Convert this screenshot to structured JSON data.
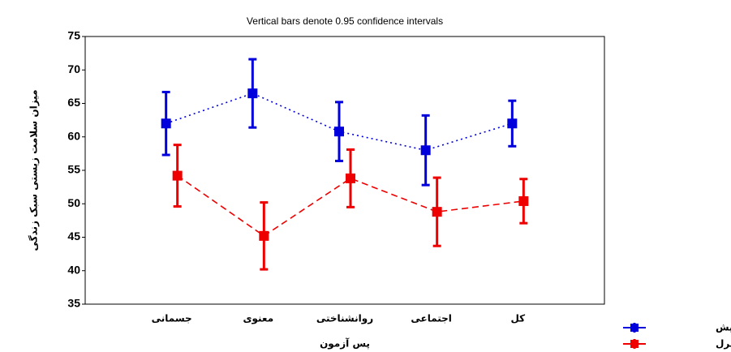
{
  "chart_data": {
    "type": "errorbar",
    "title": "Vertical bars denote 0.95 confidence intervals",
    "xlabel": "پس آزمون",
    "ylabel": "میزان سلامت زیستی سبک زندگی",
    "categories": [
      "جسمانی",
      "معنوی",
      "روانشناختی",
      "اجتماعی",
      "کل"
    ],
    "series": [
      {
        "name": "گروه آزمایش",
        "color": "#0000dd",
        "linestyle": "dotted",
        "values": [
          62.0,
          66.5,
          60.8,
          58.0,
          62.0
        ],
        "errors": [
          4.7,
          5.1,
          4.4,
          5.2,
          3.4
        ]
      },
      {
        "name": "گروه کنترل",
        "color": "#ee0000",
        "linestyle": "dashed",
        "values": [
          54.2,
          45.2,
          53.8,
          48.8,
          50.4
        ],
        "errors": [
          4.6,
          5.0,
          4.3,
          5.1,
          3.3
        ]
      }
    ],
    "ylim": [
      35,
      75
    ],
    "yticks": [
      35,
      40,
      45,
      50,
      55,
      60,
      65,
      70,
      75
    ],
    "grid": false,
    "legend": "bottom-right"
  }
}
